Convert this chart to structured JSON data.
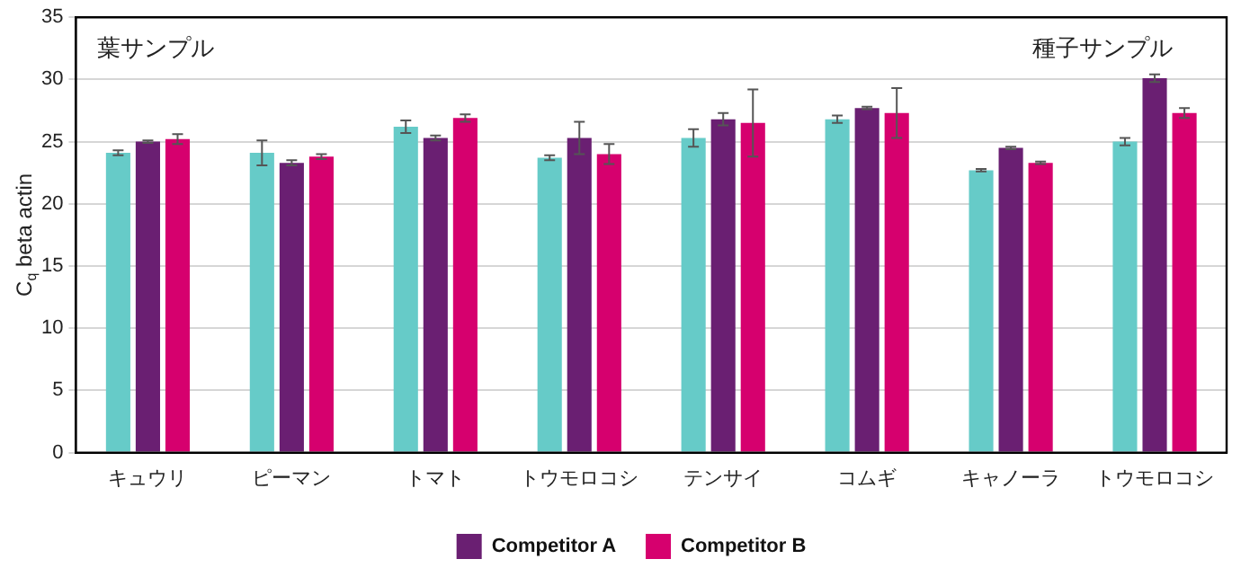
{
  "chart_data": {
    "type": "bar",
    "ylabel": "C$_{q}$ beta actin",
    "categories": [
      "キュウリ",
      "ピーマン",
      "トマト",
      "トウモロコシ",
      "テンサイ",
      "コムギ",
      "キャノーラ",
      "トウモロコシ"
    ],
    "series": [
      {
        "color": "#66cbc8",
        "values": [
          24.1,
          24.1,
          26.2,
          23.7,
          25.3,
          26.8,
          22.7,
          25.0
        ],
        "errors": [
          0.2,
          1.0,
          0.5,
          0.2,
          0.7,
          0.3,
          0.1,
          0.3
        ]
      },
      {
        "name": "Competitor A",
        "color": "#6a1f72",
        "values": [
          25.0,
          23.3,
          25.3,
          25.3,
          26.8,
          27.7,
          24.5,
          30.1
        ],
        "errors": [
          0.1,
          0.2,
          0.2,
          1.3,
          0.5,
          0.1,
          0.1,
          0.3
        ]
      },
      {
        "name": "Competitor B",
        "color": "#d6006e",
        "values": [
          25.2,
          23.8,
          26.9,
          24.0,
          26.5,
          27.3,
          23.3,
          27.3
        ],
        "errors": [
          0.4,
          0.2,
          0.3,
          0.8,
          2.7,
          2.0,
          0.1,
          0.4
        ]
      }
    ],
    "ylim": [
      0,
      35
    ],
    "yticks": [
      0,
      5,
      10,
      15,
      20,
      25,
      30,
      35
    ],
    "grid": "y",
    "legend": "bottom",
    "annotations": [
      "葉サンプル",
      "種子サンプル"
    ]
  }
}
